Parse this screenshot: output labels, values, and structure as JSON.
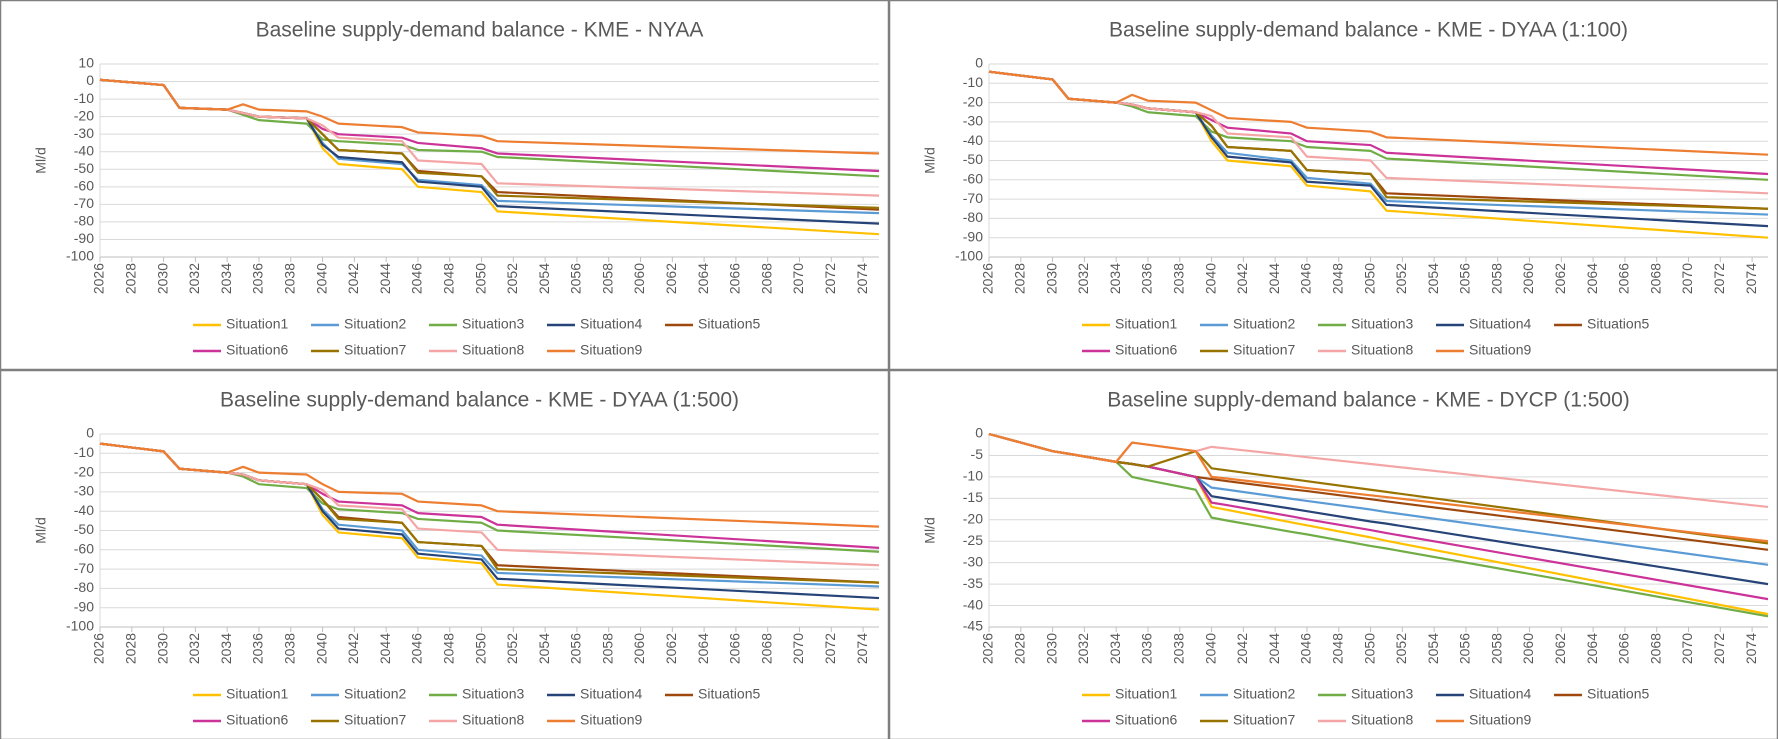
{
  "chart_data": [
    {
      "type": "line",
      "title": "Baseline supply-demand balance - KME - NYAA",
      "ylabel": "Ml/d",
      "x": [
        2026,
        2030,
        2031,
        2034,
        2035,
        2036,
        2039,
        2040,
        2041,
        2045,
        2046,
        2050,
        2051,
        2075
      ],
      "xlim": [
        2026,
        2075
      ],
      "xticks": [
        2026,
        2028,
        2030,
        2032,
        2034,
        2036,
        2038,
        2040,
        2042,
        2044,
        2046,
        2048,
        2050,
        2052,
        2054,
        2056,
        2058,
        2060,
        2062,
        2064,
        2066,
        2068,
        2070,
        2072,
        2074
      ],
      "ylim": [
        -100,
        10
      ],
      "yticks": [
        10,
        0,
        -10,
        -20,
        -30,
        -40,
        -50,
        -60,
        -70,
        -80,
        -90,
        -100
      ],
      "grid": true,
      "series": [
        {
          "name": "Situation1",
          "color": "#ffc000",
          "values": [
            1,
            -2,
            -15,
            -16,
            -18,
            -20,
            -21,
            -38,
            -47,
            -50,
            -60,
            -63,
            -74,
            -87
          ]
        },
        {
          "name": "Situation2",
          "color": "#5b9bd5",
          "values": [
            1,
            -2,
            -15,
            -16,
            -18,
            -20,
            -21,
            -35,
            -44,
            -47,
            -56,
            -59,
            -68,
            -75
          ]
        },
        {
          "name": "Situation3",
          "color": "#70ad47",
          "values": [
            1,
            -2,
            -15,
            -16,
            -19,
            -22,
            -24,
            -33,
            -34,
            -36,
            -39,
            -40,
            -43,
            -54
          ]
        },
        {
          "name": "Situation4",
          "color": "#264478",
          "values": [
            1,
            -2,
            -15,
            -16,
            -18,
            -20,
            -21,
            -36,
            -43,
            -46,
            -57,
            -60,
            -71,
            -81
          ]
        },
        {
          "name": "Situation5",
          "color": "#9e480e",
          "values": [
            1,
            -2,
            -15,
            -16,
            -18,
            -20,
            -21,
            -30,
            -39,
            -41,
            -51,
            -54,
            -63,
            -73
          ]
        },
        {
          "name": "Situation6",
          "color": "#cc3399",
          "values": [
            1,
            -2,
            -15,
            -16,
            -18,
            -20,
            -21,
            -27,
            -30,
            -32,
            -35,
            -38,
            -41,
            -51
          ]
        },
        {
          "name": "Situation7",
          "color": "#997300",
          "values": [
            1,
            -2,
            -15,
            -16,
            -18,
            -20,
            -21,
            -30,
            -39,
            -41,
            -52,
            -54,
            -65,
            -72
          ]
        },
        {
          "name": "Situation8",
          "color": "#f4a6a6",
          "values": [
            1,
            -2,
            -15,
            -16,
            -18,
            -20,
            -21,
            -25,
            -32,
            -34,
            -45,
            -47,
            -58,
            -65
          ]
        },
        {
          "name": "Situation9",
          "color": "#ed7d31",
          "values": [
            1,
            -2,
            -15,
            -16,
            -13,
            -16,
            -17,
            -20,
            -24,
            -26,
            -29,
            -31,
            -34,
            -41
          ]
        }
      ]
    },
    {
      "type": "line",
      "title": "Baseline supply-demand balance - KME - DYAA (1:100)",
      "ylabel": "Ml/d",
      "x": [
        2026,
        2030,
        2031,
        2034,
        2035,
        2036,
        2039,
        2040,
        2041,
        2045,
        2046,
        2050,
        2051,
        2075
      ],
      "xlim": [
        2026,
        2075
      ],
      "xticks": [
        2026,
        2028,
        2030,
        2032,
        2034,
        2036,
        2038,
        2040,
        2042,
        2044,
        2046,
        2048,
        2050,
        2052,
        2054,
        2056,
        2058,
        2060,
        2062,
        2064,
        2066,
        2068,
        2070,
        2072,
        2074
      ],
      "ylim": [
        -100,
        0
      ],
      "yticks": [
        0,
        -10,
        -20,
        -30,
        -40,
        -50,
        -60,
        -70,
        -80,
        -90,
        -100
      ],
      "grid": true,
      "series": [
        {
          "name": "Situation1",
          "color": "#ffc000",
          "values": [
            -4,
            -8,
            -18,
            -20,
            -21,
            -23,
            -25,
            -40,
            -50,
            -53,
            -63,
            -66,
            -76,
            -90
          ]
        },
        {
          "name": "Situation2",
          "color": "#5b9bd5",
          "values": [
            -4,
            -8,
            -18,
            -20,
            -21,
            -23,
            -25,
            -37,
            -46,
            -50,
            -59,
            -62,
            -71,
            -78
          ]
        },
        {
          "name": "Situation3",
          "color": "#70ad47",
          "values": [
            -4,
            -8,
            -18,
            -20,
            -22,
            -25,
            -27,
            -35,
            -38,
            -40,
            -43,
            -45,
            -49,
            -60
          ]
        },
        {
          "name": "Situation4",
          "color": "#264478",
          "values": [
            -4,
            -8,
            -18,
            -20,
            -21,
            -23,
            -25,
            -38,
            -48,
            -51,
            -61,
            -63,
            -73,
            -84
          ]
        },
        {
          "name": "Situation5",
          "color": "#9e480e",
          "values": [
            -4,
            -8,
            -18,
            -20,
            -21,
            -23,
            -25,
            -32,
            -43,
            -45,
            -55,
            -57,
            -67,
            -75
          ]
        },
        {
          "name": "Situation6",
          "color": "#cc3399",
          "values": [
            -4,
            -8,
            -18,
            -20,
            -21,
            -23,
            -25,
            -29,
            -33,
            -36,
            -40,
            -42,
            -46,
            -57
          ]
        },
        {
          "name": "Situation7",
          "color": "#997300",
          "values": [
            -4,
            -8,
            -18,
            -20,
            -21,
            -23,
            -25,
            -32,
            -43,
            -45,
            -55,
            -57,
            -69,
            -75
          ]
        },
        {
          "name": "Situation8",
          "color": "#f4a6a6",
          "values": [
            -4,
            -8,
            -18,
            -20,
            -21,
            -23,
            -25,
            -27,
            -36,
            -38,
            -48,
            -50,
            -59,
            -67
          ]
        },
        {
          "name": "Situation9",
          "color": "#ed7d31",
          "values": [
            -4,
            -8,
            -18,
            -20,
            -16,
            -19,
            -20,
            -24,
            -28,
            -30,
            -33,
            -35,
            -38,
            -47
          ]
        }
      ]
    },
    {
      "type": "line",
      "title": "Baseline supply-demand balance - KME - DYAA (1:500)",
      "ylabel": "Ml/d",
      "x": [
        2026,
        2030,
        2031,
        2034,
        2035,
        2036,
        2039,
        2040,
        2041,
        2045,
        2046,
        2050,
        2051,
        2075
      ],
      "xlim": [
        2026,
        2075
      ],
      "xticks": [
        2026,
        2028,
        2030,
        2032,
        2034,
        2036,
        2038,
        2040,
        2042,
        2044,
        2046,
        2048,
        2050,
        2052,
        2054,
        2056,
        2058,
        2060,
        2062,
        2064,
        2066,
        2068,
        2070,
        2072,
        2074
      ],
      "ylim": [
        -100,
        0
      ],
      "yticks": [
        0,
        -10,
        -20,
        -30,
        -40,
        -50,
        -60,
        -70,
        -80,
        -90,
        -100
      ],
      "grid": true,
      "series": [
        {
          "name": "Situation1",
          "color": "#ffc000",
          "values": [
            -5,
            -9,
            -18,
            -20,
            -21,
            -24,
            -26,
            -42,
            -51,
            -54,
            -64,
            -67,
            -78,
            -91
          ]
        },
        {
          "name": "Situation2",
          "color": "#5b9bd5",
          "values": [
            -5,
            -9,
            -18,
            -20,
            -21,
            -24,
            -26,
            -39,
            -47,
            -50,
            -60,
            -63,
            -72,
            -79
          ]
        },
        {
          "name": "Situation3",
          "color": "#70ad47",
          "values": [
            -5,
            -9,
            -18,
            -20,
            -22,
            -26,
            -28,
            -36,
            -39,
            -41,
            -44,
            -46,
            -50,
            -61
          ]
        },
        {
          "name": "Situation4",
          "color": "#264478",
          "values": [
            -5,
            -9,
            -18,
            -20,
            -21,
            -24,
            -26,
            -40,
            -49,
            -52,
            -62,
            -65,
            -75,
            -85
          ]
        },
        {
          "name": "Situation5",
          "color": "#9e480e",
          "values": [
            -5,
            -9,
            -18,
            -20,
            -21,
            -24,
            -26,
            -34,
            -43,
            -46,
            -56,
            -58,
            -68,
            -77
          ]
        },
        {
          "name": "Situation6",
          "color": "#cc3399",
          "values": [
            -5,
            -9,
            -18,
            -20,
            -21,
            -24,
            -26,
            -31,
            -35,
            -37,
            -41,
            -43,
            -47,
            -59
          ]
        },
        {
          "name": "Situation7",
          "color": "#997300",
          "values": [
            -5,
            -9,
            -18,
            -20,
            -21,
            -24,
            -26,
            -34,
            -44,
            -46,
            -56,
            -58,
            -70,
            -77
          ]
        },
        {
          "name": "Situation8",
          "color": "#f4a6a6",
          "values": [
            -5,
            -9,
            -18,
            -20,
            -21,
            -24,
            -26,
            -29,
            -37,
            -39,
            -49,
            -51,
            -60,
            -68
          ]
        },
        {
          "name": "Situation9",
          "color": "#ed7d31",
          "values": [
            -5,
            -9,
            -18,
            -20,
            -17,
            -20,
            -21,
            -26,
            -30,
            -31,
            -35,
            -37,
            -40,
            -48
          ]
        }
      ]
    },
    {
      "type": "line",
      "title": "Baseline supply-demand balance - KME - DYCP (1:500)",
      "ylabel": "Ml/d",
      "x": [
        2026,
        2030,
        2031,
        2034,
        2035,
        2036,
        2039,
        2040,
        2041,
        2045,
        2046,
        2050,
        2051,
        2075
      ],
      "xlim": [
        2026,
        2075
      ],
      "xticks": [
        2026,
        2028,
        2030,
        2032,
        2034,
        2036,
        2038,
        2040,
        2042,
        2044,
        2046,
        2048,
        2050,
        2052,
        2054,
        2056,
        2058,
        2060,
        2062,
        2064,
        2066,
        2068,
        2070,
        2072,
        2074
      ],
      "ylim": [
        -45,
        0
      ],
      "yticks": [
        0,
        -5,
        -10,
        -15,
        -20,
        -25,
        -30,
        -35,
        -40,
        -45
      ],
      "grid": true,
      "series": [
        {
          "name": "Situation1",
          "color": "#ffc000",
          "values": [
            0,
            -4,
            -4.6,
            -6.5,
            -7,
            -7.6,
            -10,
            -17,
            -17.7,
            -20.6,
            -21.3,
            -24.1,
            -24.9,
            -42
          ]
        },
        {
          "name": "Situation2",
          "color": "#5b9bd5",
          "values": [
            0,
            -4,
            -4.6,
            -6.5,
            -7,
            -7.6,
            -10,
            -12.5,
            -13,
            -15.1,
            -15.6,
            -17.6,
            -18.2,
            -30.5
          ]
        },
        {
          "name": "Situation3",
          "color": "#70ad47",
          "values": [
            0,
            -4,
            -4.6,
            -6.5,
            -10,
            -10.8,
            -13,
            -19.5,
            -20.2,
            -22.8,
            -23.4,
            -26.1,
            -26.7,
            -42.5
          ]
        },
        {
          "name": "Situation4",
          "color": "#264478",
          "values": [
            0,
            -4,
            -4.6,
            -6.5,
            -7,
            -7.6,
            -10,
            -14.5,
            -15.1,
            -17.4,
            -18,
            -20.4,
            -20.9,
            -35
          ]
        },
        {
          "name": "Situation5",
          "color": "#9e480e",
          "values": [
            0,
            -4,
            -4.6,
            -6.5,
            -7,
            -7.6,
            -10,
            -10.5,
            -11,
            -12.9,
            -13.3,
            -15.2,
            -15.7,
            -27
          ]
        },
        {
          "name": "Situation6",
          "color": "#cc3399",
          "values": [
            0,
            -4,
            -4.6,
            -6.5,
            -7,
            -7.6,
            -10,
            -16,
            -16.6,
            -19.2,
            -19.9,
            -22.4,
            -23.1,
            -38.5
          ]
        },
        {
          "name": "Situation7",
          "color": "#997300",
          "values": [
            0,
            -4,
            -4.6,
            -6.5,
            -7,
            -7.6,
            -4,
            -8,
            -8.5,
            -10.5,
            -11,
            -13,
            -13.5,
            -25.5
          ]
        },
        {
          "name": "Situation8",
          "color": "#f4a6a6",
          "values": [
            0,
            -4,
            -4.6,
            -6.5,
            -2,
            -2.5,
            -4,
            -3,
            -3.4,
            -5,
            -5.4,
            -7,
            -7.4,
            -17
          ]
        },
        {
          "name": "Situation9",
          "color": "#ed7d31",
          "values": [
            0,
            -4,
            -4.6,
            -6.5,
            -2,
            -2.5,
            -4,
            -10,
            -10.4,
            -12.1,
            -12.6,
            -14.3,
            -14.7,
            -25
          ]
        }
      ]
    }
  ]
}
